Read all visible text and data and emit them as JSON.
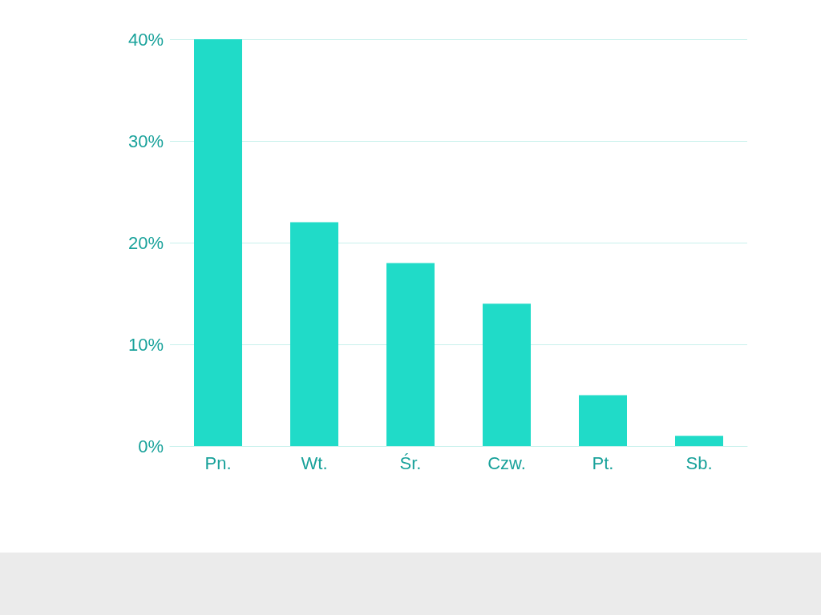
{
  "chart_data": {
    "type": "bar",
    "categories": [
      "Pn.",
      "Wt.",
      "Śr.",
      "Czw.",
      "Pt.",
      "Sb."
    ],
    "values": [
      40,
      22,
      18,
      14,
      5,
      1
    ],
    "color": "#20dbc8",
    "ylim": [
      0,
      40
    ],
    "yticks": [
      {
        "value": 0,
        "label": "0%"
      },
      {
        "value": 10,
        "label": "10%"
      },
      {
        "value": 20,
        "label": "20%"
      },
      {
        "value": 30,
        "label": "30%"
      },
      {
        "value": 40,
        "label": "40%"
      }
    ],
    "grid": "y"
  }
}
